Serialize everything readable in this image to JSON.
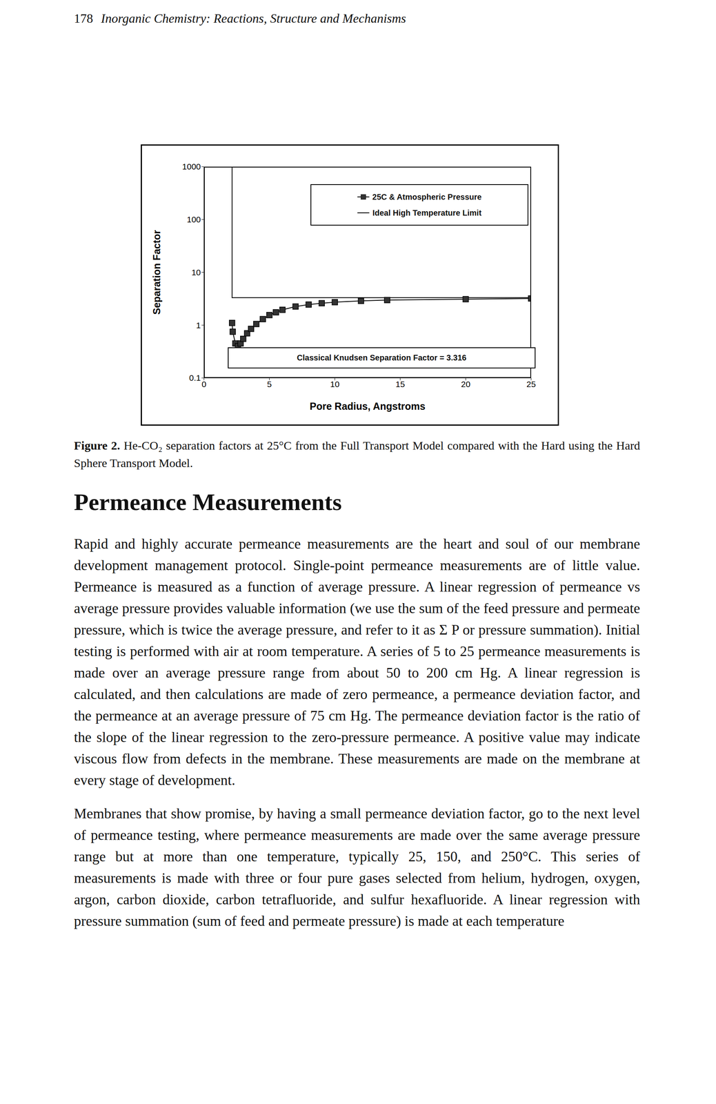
{
  "header": {
    "page": "178",
    "title": "Inorganic Chemistry: Reactions, Structure and Mechanisms"
  },
  "chart_data": {
    "type": "line",
    "xlabel": "Pore Radius, Angstroms",
    "ylabel": "Separation Factor",
    "xlim": [
      0,
      25
    ],
    "xticks": [
      0,
      5,
      10,
      15,
      20,
      25
    ],
    "ylim": [
      0.1,
      1000
    ],
    "yticks": [
      0.1,
      1,
      10,
      100,
      1000
    ],
    "log": "y",
    "legend": "top-right",
    "annotations": [
      "Classical Knudsen Separation Factor = 3.316"
    ],
    "series": [
      {
        "name": "25C & Atmospheric Pressure",
        "color": "#000000",
        "marker": "square",
        "line_style": "solid",
        "x": [
          2.15,
          2.2,
          2.4,
          2.6,
          2.8,
          3.0,
          3.3,
          3.6,
          4.0,
          4.5,
          5.0,
          5.5,
          6.0,
          7.0,
          8.0,
          9.0,
          10.0,
          12.0,
          14.0,
          20.0,
          25.0
        ],
        "values": [
          1.1,
          0.75,
          0.45,
          0.4,
          0.45,
          0.55,
          0.7,
          0.85,
          1.05,
          1.3,
          1.55,
          1.75,
          1.95,
          2.25,
          2.45,
          2.6,
          2.72,
          2.88,
          2.98,
          3.1,
          3.2
        ]
      },
      {
        "name": "Ideal High Temperature Limit",
        "color": "#000000",
        "line_style": "solid",
        "x": [
          2.15,
          2.15,
          25
        ],
        "values": [
          1000,
          3.316,
          3.316
        ]
      }
    ]
  },
  "caption": {
    "label": "Figure 2.",
    "text": "He-CO₂ separation factors at 25°C from the Full Transport Model compared with the Hard using the Hard Sphere Transport Model."
  },
  "heading": "Permeance Measurements",
  "paragraphs": [
    "Rapid and highly accurate permeance measurements are the heart and soul of our membrane development management protocol. Single-point permeance measurements are of little value. Permeance is measured as a function of average pressure. A linear regression of permeance vs average pressure provides valuable information (we use the sum of the feed pressure and permeate pressure, which is twice the average pressure, and refer to it as Σ P or pressure summation). Initial testing is performed with air at room temperature. A series of 5 to 25 permeance measurements is made over an average pressure range from about 50 to 200 cm Hg. A linear regression is calculated, and then calculations are made of zero permeance, a permeance deviation factor, and the permeance at an average pressure of 75 cm Hg. The permeance deviation factor is the ratio of the slope of the linear regression to the zero-pressure permeance. A positive value may indicate viscous flow from defects in the membrane. These measurements are made on the membrane at every stage of development.",
    "Membranes that show promise, by having a small permeance deviation factor, go to the next level of permeance testing, where permeance measurements are made over the same average pressure range but at more than one temperature, typically 25, 150, and 250°C. This series of measurements is made with three or four pure gases selected from helium, hydrogen, oxygen, argon, carbon dioxide, carbon tetrafluoride, and sulfur hexafluoride. A linear regression with pressure summation (sum of feed and permeate pressure) is made at each temperature"
  ]
}
